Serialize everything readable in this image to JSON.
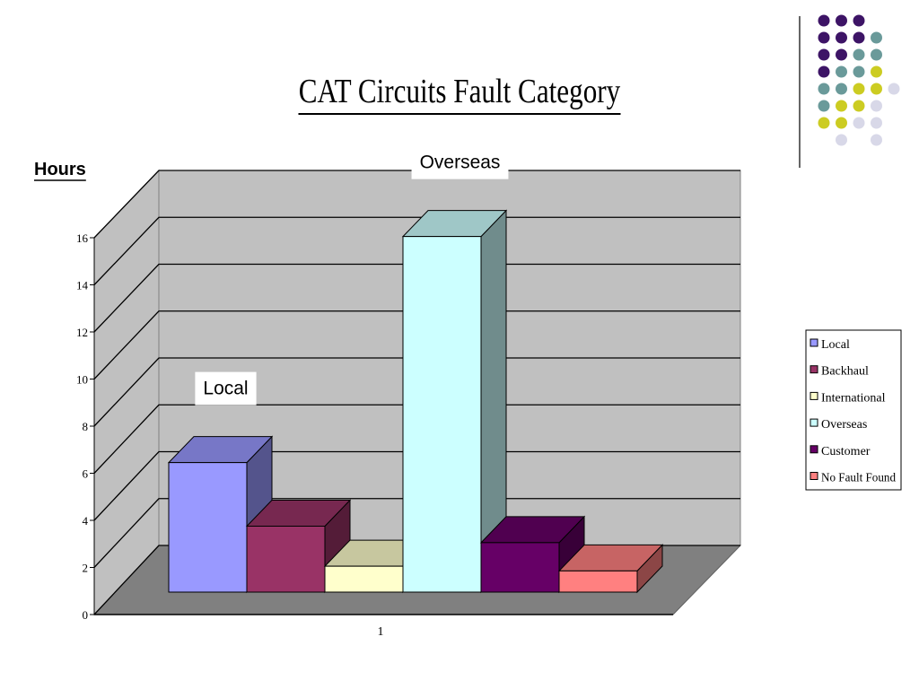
{
  "chart_data": {
    "type": "bar",
    "title": "CAT Circuits Fault Category",
    "y_label": "Hours",
    "categories": [
      "1"
    ],
    "series": [
      {
        "name": "Local",
        "color": "#9999ff",
        "values": [
          5.5
        ]
      },
      {
        "name": "Backhaul",
        "color": "#993366",
        "values": [
          2.8
        ]
      },
      {
        "name": "International",
        "color": "#ffffcc",
        "values": [
          1.1
        ]
      },
      {
        "name": "Overseas",
        "color": "#ccffff",
        "values": [
          15.1
        ]
      },
      {
        "name": "Customer",
        "color": "#660066",
        "values": [
          2.1
        ]
      },
      {
        "name": "No Fault Found",
        "color": "#ff8080",
        "values": [
          0.9
        ]
      }
    ],
    "annotations": [
      "Local",
      "Overseas"
    ],
    "ylim": [
      0,
      16
    ],
    "yticks": [
      0,
      2,
      4,
      6,
      8,
      10,
      12,
      14,
      16
    ],
    "grid": true,
    "legend": "right"
  }
}
